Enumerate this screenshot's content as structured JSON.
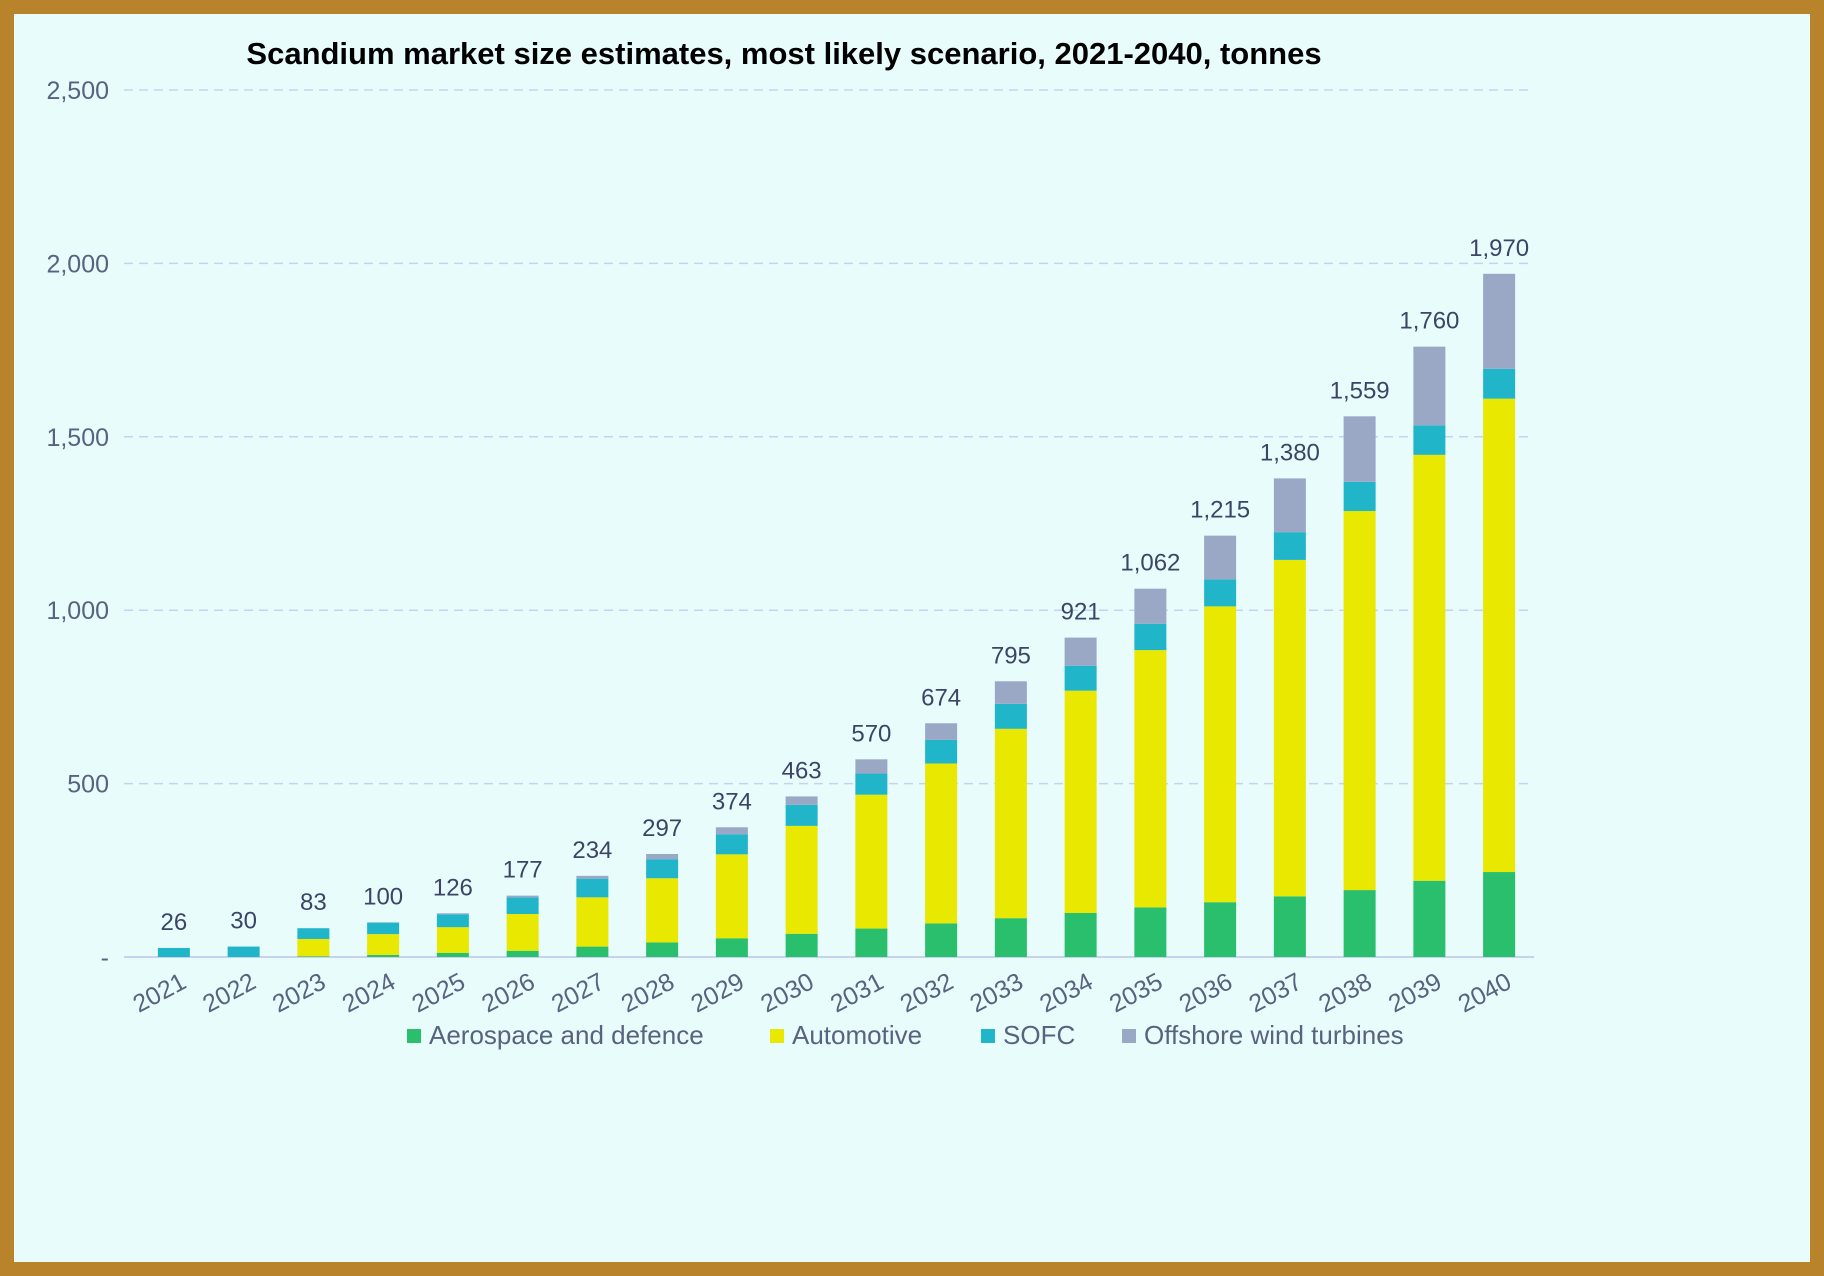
{
  "chart_data": {
    "type": "bar",
    "stacked": true,
    "title": "Scandium market size estimates, most likely scenario, 2021-2040, tonnes",
    "xlabel": "",
    "ylabel": "",
    "ylim": [
      0,
      2500
    ],
    "yticks": [
      0,
      500,
      1000,
      1500,
      2000,
      2500
    ],
    "ytick_labels": [
      "-",
      "500",
      "1,000",
      "1,500",
      "2,000",
      "2,500"
    ],
    "grid": true,
    "legend_position": "bottom",
    "categories": [
      "2021",
      "2022",
      "2023",
      "2024",
      "2025",
      "2026",
      "2027",
      "2028",
      "2029",
      "2030",
      "2031",
      "2032",
      "2033",
      "2034",
      "2035",
      "2036",
      "2037",
      "2038",
      "2039",
      "2040"
    ],
    "series": [
      {
        "name": "Aerospace and defence",
        "color": "#2abf6c",
        "values": [
          0,
          0,
          2,
          6,
          12,
          18,
          30,
          42,
          54,
          67,
          82,
          97,
          112,
          127,
          143,
          158,
          175,
          193,
          220,
          245
        ]
      },
      {
        "name": "Automotive",
        "color": "#e8e800",
        "values": [
          0,
          0,
          50,
          60,
          74,
          106,
          142,
          185,
          242,
          311,
          386,
          461,
          546,
          641,
          742,
          853,
          970,
          1093,
          1228,
          1365
        ]
      },
      {
        "name": "SOFC",
        "color": "#21b5c9",
        "values": [
          26,
          30,
          31,
          33,
          37,
          48,
          54,
          55,
          58,
          61,
          61,
          68,
          72,
          72,
          76,
          78,
          80,
          84,
          85,
          86
        ]
      },
      {
        "name": "Offshore wind turbines",
        "color": "#9aa8c6",
        "values": [
          0,
          0,
          0,
          1,
          3,
          5,
          8,
          15,
          20,
          24,
          41,
          48,
          65,
          81,
          101,
          126,
          155,
          189,
          227,
          274
        ]
      }
    ],
    "totals": [
      26,
      30,
      83,
      100,
      126,
      177,
      234,
      297,
      374,
      463,
      570,
      674,
      795,
      921,
      1062,
      1215,
      1380,
      1559,
      1760,
      1970
    ],
    "total_labels": [
      "26",
      "30",
      "83",
      "100",
      "126",
      "177",
      "234",
      "297",
      "374",
      "463",
      "570",
      "674",
      "795",
      "921",
      "1,062",
      "1,215",
      "1,380",
      "1,559",
      "1,760",
      "1,970"
    ]
  }
}
